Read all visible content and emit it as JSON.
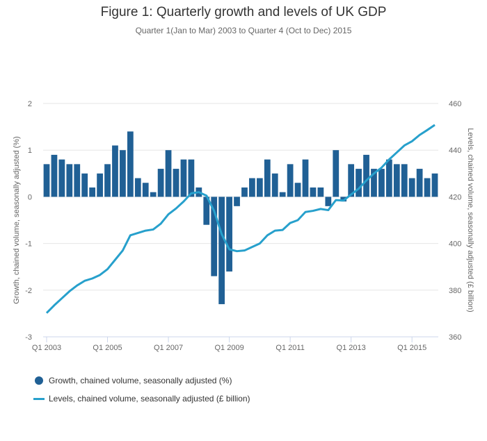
{
  "chart_data": {
    "type": "bar+line",
    "title": "Figure 1: Quarterly growth and levels of UK GDP",
    "subtitle": "Quarter 1(Jan to Mar) 2003 to Quarter 4 (Oct to Dec) 2015",
    "ylabel_left": "Growth, chained volume, seasonally adjusted (%)",
    "ylabel_right": "Levels, chained volume, seasonally adjusted (£ billion)",
    "ylim_left": [
      -3,
      2
    ],
    "ylim_right": [
      360,
      460
    ],
    "yticks_left": [
      "2",
      "1",
      "0",
      "-1",
      "-2",
      "-3"
    ],
    "yticks_right": [
      "460",
      "440",
      "420",
      "400",
      "380",
      "360"
    ],
    "xticks": [
      "Q1 2003",
      "Q1 2005",
      "Q1 2007",
      "Q1 2009",
      "Q1 2011",
      "Q1 2013",
      "Q1 2015"
    ],
    "grid": true,
    "legend_position": "bottom-left",
    "colors": {
      "bars": "#206095",
      "line": "#27a0cc"
    },
    "series": [
      {
        "name": "Growth, chained volume, seasonally adjusted (%)",
        "type": "bar",
        "axis": "left",
        "values": [
          0.7,
          0.9,
          0.8,
          0.7,
          0.7,
          0.5,
          0.2,
          0.5,
          0.7,
          1.1,
          1.0,
          1.4,
          0.4,
          0.3,
          0.1,
          0.6,
          1.0,
          0.6,
          0.8,
          0.8,
          0.2,
          -0.6,
          -1.7,
          -2.3,
          -1.6,
          -0.2,
          0.2,
          0.4,
          0.4,
          0.8,
          0.5,
          0.1,
          0.7,
          0.3,
          0.8,
          0.2,
          0.2,
          -0.2,
          1.0,
          -0.1,
          0.7,
          0.6,
          0.9,
          0.6,
          0.6,
          0.8,
          0.7,
          0.7,
          0.4,
          0.6,
          0.4,
          0.5
        ]
      },
      {
        "name": "Levels, chained volume, seasonally adjusted (£ billion)",
        "type": "line",
        "axis": "right",
        "values": [
          370.2,
          373.5,
          376.5,
          379.5,
          382,
          384,
          385,
          386.5,
          389,
          393,
          397,
          403.5,
          404.5,
          405.5,
          406,
          408.5,
          412.5,
          415,
          418,
          421.5,
          422,
          420.5,
          414,
          404,
          397.5,
          396.7,
          397,
          398.5,
          400,
          403.5,
          405.5,
          405.8,
          408.8,
          410,
          413.5,
          414,
          414.8,
          414.3,
          418.6,
          418.4,
          421,
          423.5,
          427,
          430,
          432.5,
          436,
          439,
          442,
          443.8,
          446.5,
          448.6,
          450.8
        ]
      }
    ]
  }
}
